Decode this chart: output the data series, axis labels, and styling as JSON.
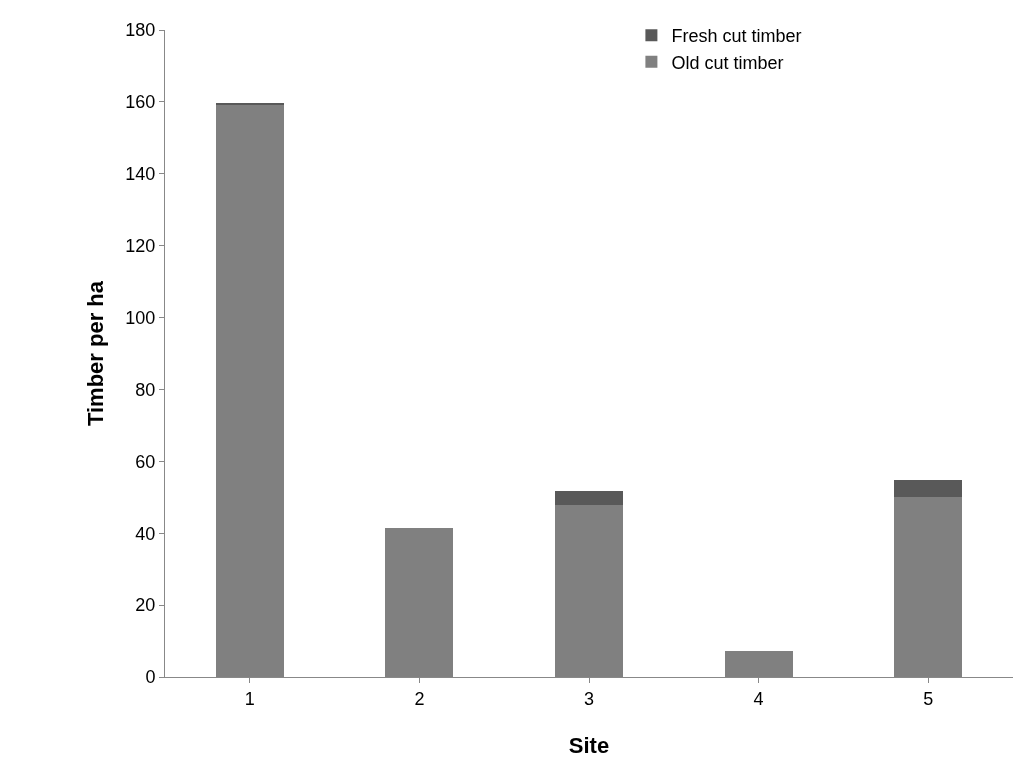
{
  "chart_data": {
    "type": "bar",
    "stacked": true,
    "xlabel": "Site",
    "ylabel": "Timber per ha",
    "categories": [
      "1",
      "2",
      "3",
      "4",
      "5"
    ],
    "series": [
      {
        "name": "Old cut timber",
        "color": "#808080",
        "values": [
          159.1,
          41.5,
          47.8,
          7.2,
          50.1
        ]
      },
      {
        "name": "Fresh cut timber",
        "color": "#595959",
        "values": [
          0.6,
          0,
          4,
          0,
          4.6
        ]
      }
    ],
    "ylim": [
      0,
      180
    ],
    "yticks": [
      0,
      20,
      40,
      60,
      80,
      100,
      120,
      140,
      160,
      180
    ],
    "grid": false,
    "legend": "top right"
  }
}
